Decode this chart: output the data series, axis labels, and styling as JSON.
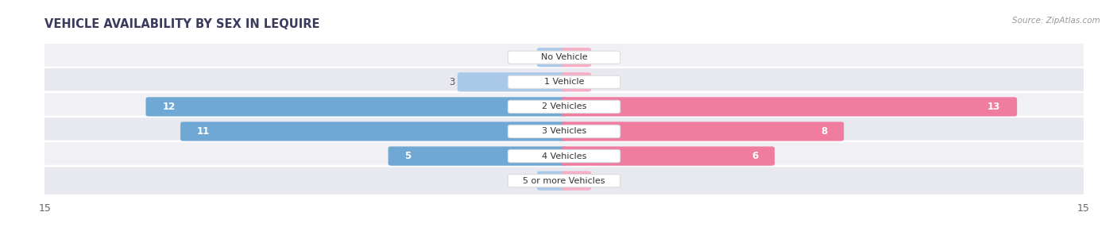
{
  "title": "VEHICLE AVAILABILITY BY SEX IN LEQUIRE",
  "source": "Source: ZipAtlas.com",
  "categories": [
    "No Vehicle",
    "1 Vehicle",
    "2 Vehicles",
    "3 Vehicles",
    "4 Vehicles",
    "5 or more Vehicles"
  ],
  "male_values": [
    0,
    3,
    12,
    11,
    5,
    0
  ],
  "female_values": [
    0,
    0,
    13,
    8,
    6,
    0
  ],
  "male_color": "#6fa8d4",
  "female_color": "#f07ca0",
  "male_color_light": "#aac9e8",
  "female_color_light": "#f5aec5",
  "xlim": 15,
  "bar_height": 0.62,
  "background_color": "#ffffff",
  "row_colors": [
    "#f0f0f5",
    "#e8e8f0"
  ],
  "label_fontsize": 8.5,
  "title_fontsize": 10.5,
  "value_fontsize": 8.5,
  "title_color": "#3a3a5c",
  "source_color": "#999999",
  "tick_color": "#666666"
}
